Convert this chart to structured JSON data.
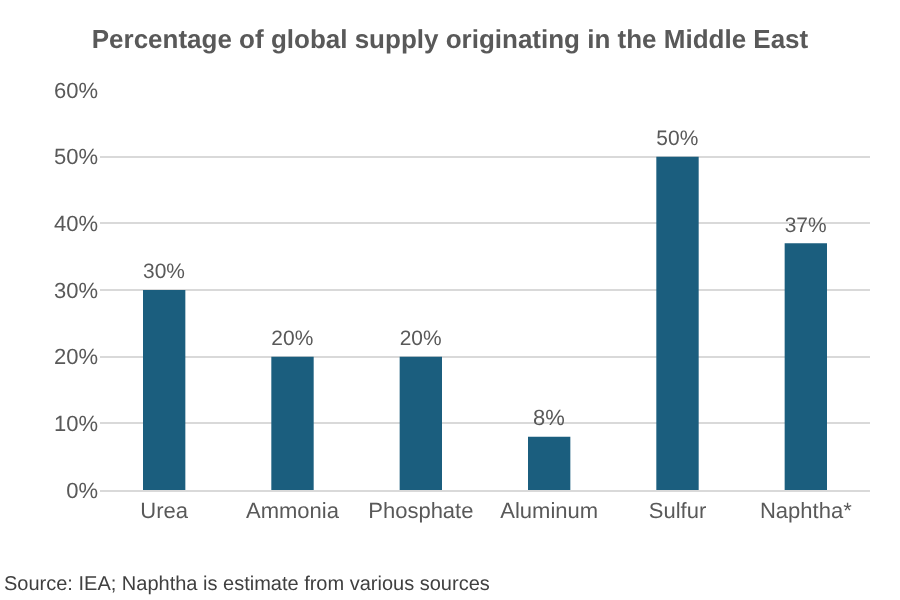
{
  "chart_data": {
    "type": "bar",
    "title": "Percentage of global supply originating in the Middle East",
    "categories": [
      "Urea",
      "Ammonia",
      "Phosphate",
      "Aluminum",
      "Sulfur",
      "Naphtha*"
    ],
    "values": [
      30,
      20,
      20,
      8,
      50,
      37
    ],
    "value_labels": [
      "30%",
      "20%",
      "20%",
      "8%",
      "50%",
      "37%"
    ],
    "color": "#1b5e7e",
    "ylim": [
      0,
      60
    ],
    "yticks": [
      {
        "value": 0,
        "label": "0%"
      },
      {
        "value": 10,
        "label": "10%"
      },
      {
        "value": 20,
        "label": "20%"
      },
      {
        "value": 30,
        "label": "30%"
      },
      {
        "value": 40,
        "label": "40%"
      },
      {
        "value": 50,
        "label": "50%"
      },
      {
        "value": 60,
        "label": "60%"
      }
    ],
    "grid": "y",
    "annotations": [
      "Source: IEA; Naphtha is estimate from various sources"
    ]
  }
}
